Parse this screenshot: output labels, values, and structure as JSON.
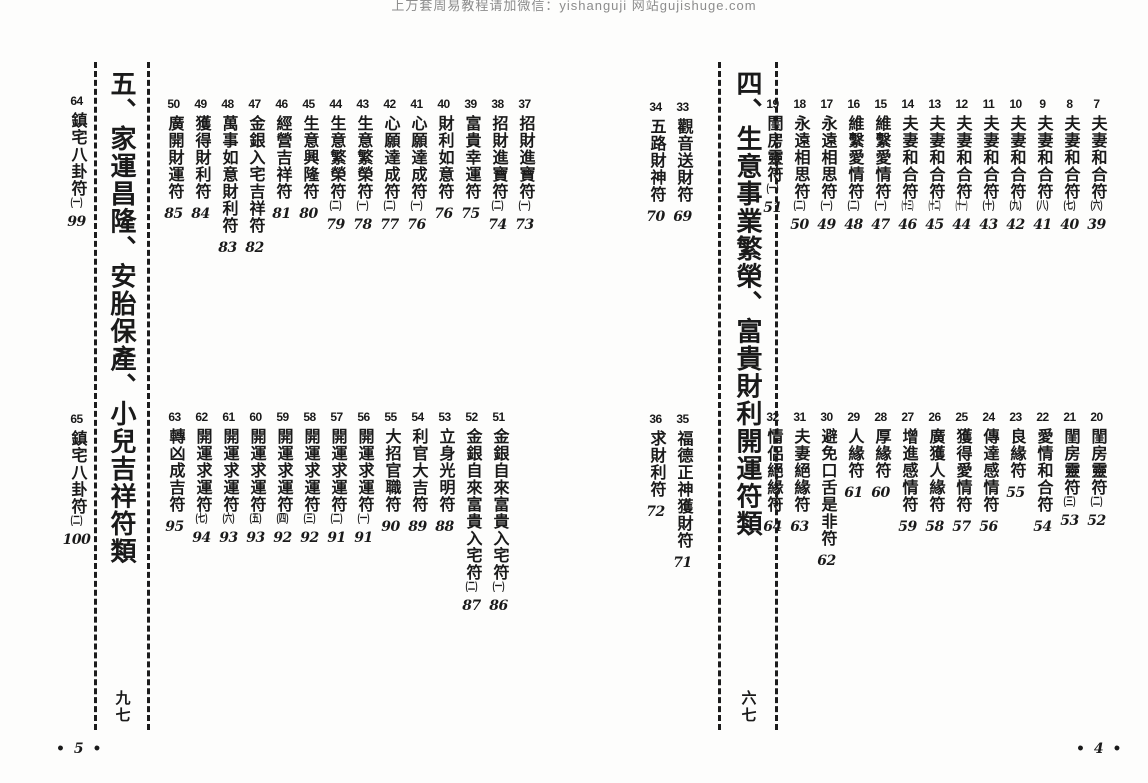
{
  "watermark": "上万套周易教程请加微信：yishanguji 网站gujishuge.com",
  "left_page": {
    "footer": "• 5 •",
    "section_title": "五、家運昌隆、安胎保產、小兒吉祥符類",
    "section_page_label": "九七",
    "side_top": [
      {
        "no": "64",
        "name": "鎮宅八卦符",
        "sub": "(一)",
        "page": "99"
      }
    ],
    "side_bottom": [
      {
        "no": "65",
        "name": "鎮宅八卦符",
        "sub": "(二)",
        "page": "100"
      }
    ],
    "row_top": [
      {
        "no": "37",
        "name": "招財進寶符",
        "sub": "(一)",
        "page": "73"
      },
      {
        "no": "38",
        "name": "招財進寶符",
        "sub": "(二)",
        "page": "74"
      },
      {
        "no": "39",
        "name": "富貴幸運符",
        "sub": "",
        "page": "75"
      },
      {
        "no": "40",
        "name": "財利如意符",
        "sub": "",
        "page": "76"
      },
      {
        "no": "41",
        "name": "心願達成符",
        "sub": "(一)",
        "page": "76"
      },
      {
        "no": "42",
        "name": "心願達成符",
        "sub": "(二)",
        "page": "77"
      },
      {
        "no": "43",
        "name": "生意繁榮符",
        "sub": "(一)",
        "page": "78"
      },
      {
        "no": "44",
        "name": "生意繁榮符",
        "sub": "(二)",
        "page": "79"
      },
      {
        "no": "45",
        "name": "生意興隆符",
        "sub": "",
        "page": "80"
      },
      {
        "no": "46",
        "name": "經營吉祥符",
        "sub": "",
        "page": "81"
      },
      {
        "no": "47",
        "name": "金銀入宅吉祥符",
        "sub": "",
        "page": "82"
      },
      {
        "no": "48",
        "name": "萬事如意財利符",
        "sub": "",
        "page": "83"
      },
      {
        "no": "49",
        "name": "獲得財利符",
        "sub": "",
        "page": "84"
      },
      {
        "no": "50",
        "name": "廣開財運符",
        "sub": "",
        "page": "85"
      }
    ],
    "row_bottom": [
      {
        "no": "51",
        "name": "金銀自來富貴入宅符",
        "sub": "(一)",
        "page": "86"
      },
      {
        "no": "52",
        "name": "金銀自來富貴入宅符",
        "sub": "(二)",
        "page": "87"
      },
      {
        "no": "53",
        "name": "立身光明符",
        "sub": "",
        "page": "88"
      },
      {
        "no": "54",
        "name": "利官大吉符",
        "sub": "",
        "page": "89"
      },
      {
        "no": "55",
        "name": "大招官職符",
        "sub": "",
        "page": "90"
      },
      {
        "no": "56",
        "name": "開運求運符",
        "sub": "(一)",
        "page": "91"
      },
      {
        "no": "57",
        "name": "開運求運符",
        "sub": "(二)",
        "page": "91"
      },
      {
        "no": "58",
        "name": "開運求運符",
        "sub": "(三)",
        "page": "92"
      },
      {
        "no": "59",
        "name": "開運求運符",
        "sub": "(四)",
        "page": "92"
      },
      {
        "no": "60",
        "name": "開運求運符",
        "sub": "(五)",
        "page": "93"
      },
      {
        "no": "61",
        "name": "開運求運符",
        "sub": "(六)",
        "page": "93"
      },
      {
        "no": "62",
        "name": "開運求運符",
        "sub": "(七)",
        "page": "94"
      },
      {
        "no": "63",
        "name": "轉凶成吉符",
        "sub": "",
        "page": "95"
      }
    ]
  },
  "right_page": {
    "footer": "• 4 •",
    "section_title": "四、生意事業繁榮、富貴財利開運符類",
    "section_page_label": "六七",
    "side_top": [
      {
        "no": "33",
        "name": "觀音送財符",
        "sub": "",
        "page": "69"
      },
      {
        "no": "34",
        "name": "五路財神符",
        "sub": "",
        "page": "70"
      }
    ],
    "side_bottom": [
      {
        "no": "35",
        "name": "福德正神獲財符",
        "sub": "",
        "page": "71"
      },
      {
        "no": "36",
        "name": "求財利符",
        "sub": "",
        "page": "72"
      }
    ],
    "row_top": [
      {
        "no": "7",
        "name": "夫妻和合符",
        "sub": "(六)",
        "page": "39"
      },
      {
        "no": "8",
        "name": "夫妻和合符",
        "sub": "(七)",
        "page": "40"
      },
      {
        "no": "9",
        "name": "夫妻和合符",
        "sub": "(八)",
        "page": "41"
      },
      {
        "no": "10",
        "name": "夫妻和合符",
        "sub": "(九)",
        "page": "42"
      },
      {
        "no": "11",
        "name": "夫妻和合符",
        "sub": "(十)",
        "page": "43"
      },
      {
        "no": "12",
        "name": "夫妻和合符",
        "sub": "(十一)",
        "page": "44"
      },
      {
        "no": "13",
        "name": "夫妻和合符",
        "sub": "(十二)",
        "page": "45"
      },
      {
        "no": "14",
        "name": "夫妻和合符",
        "sub": "(十三)",
        "page": "46"
      },
      {
        "no": "15",
        "name": "維繫愛情符",
        "sub": "(一)",
        "page": "47"
      },
      {
        "no": "16",
        "name": "維繫愛情符",
        "sub": "(二)",
        "page": "48"
      },
      {
        "no": "17",
        "name": "永遠相思符",
        "sub": "(一)",
        "page": "49"
      },
      {
        "no": "18",
        "name": "永遠相思符",
        "sub": "(二)",
        "page": "50"
      },
      {
        "no": "19",
        "name": "閨房靈符",
        "sub": "(一)",
        "page": "51"
      }
    ],
    "row_bottom": [
      {
        "no": "20",
        "name": "閨房靈符",
        "sub": "(二)",
        "page": "52"
      },
      {
        "no": "21",
        "name": "閨房靈符",
        "sub": "(三)",
        "page": "53"
      },
      {
        "no": "22",
        "name": "愛情和合符",
        "sub": "",
        "page": "54"
      },
      {
        "no": "23",
        "name": "良緣符",
        "sub": "",
        "page": "55"
      },
      {
        "no": "24",
        "name": "傳達感情符",
        "sub": "",
        "page": "56"
      },
      {
        "no": "25",
        "name": "獲得愛情符",
        "sub": "",
        "page": "57"
      },
      {
        "no": "26",
        "name": "廣獲人緣符",
        "sub": "",
        "page": "58"
      },
      {
        "no": "27",
        "name": "增進感情符",
        "sub": "",
        "page": "59"
      },
      {
        "no": "28",
        "name": "厚緣符",
        "sub": "",
        "page": "60"
      },
      {
        "no": "29",
        "name": "人緣符",
        "sub": "",
        "page": "61"
      },
      {
        "no": "30",
        "name": "避免口舌是非符",
        "sub": "",
        "page": "62"
      },
      {
        "no": "31",
        "name": "夫妻絕緣符",
        "sub": "",
        "page": "63"
      },
      {
        "no": "32",
        "name": "情侶絕緣符",
        "sub": "",
        "page": "64"
      }
    ]
  }
}
